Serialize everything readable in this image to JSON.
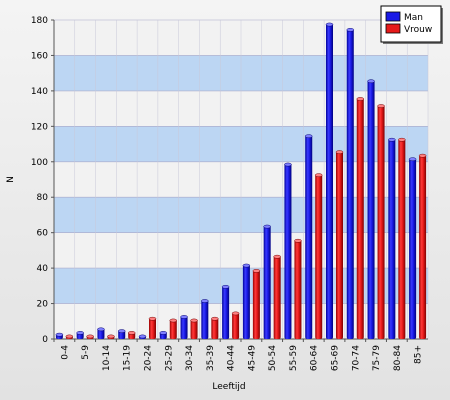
{
  "chart_data": {
    "type": "bar",
    "title": "",
    "xlabel": "Leeftijd",
    "ylabel": "N",
    "ylim": [
      0,
      180
    ],
    "yticks": [
      0,
      20,
      40,
      60,
      80,
      100,
      120,
      140,
      160,
      180
    ],
    "grid": "horizontal bands",
    "legend_position": "top-right",
    "categories": [
      "0-4",
      "5-9",
      "10-14",
      "15-19",
      "20-24",
      "25-29",
      "30-34",
      "35-39",
      "40-44",
      "45-49",
      "50-54",
      "55-59",
      "60-64",
      "65-69",
      "70-74",
      "75-79",
      "80-84",
      "85+"
    ],
    "series": [
      {
        "name": "Man",
        "color": "#1a1ae6",
        "values": [
          3,
          4,
          6,
          5,
          2,
          4,
          13,
          22,
          30,
          42,
          64,
          99,
          115,
          178,
          175,
          146,
          113,
          102
        ]
      },
      {
        "name": "Vrouw",
        "color": "#e61a1a",
        "values": [
          2,
          2,
          2,
          4,
          12,
          11,
          11,
          12,
          15,
          39,
          47,
          56,
          93,
          106,
          136,
          132,
          113,
          104
        ]
      }
    ]
  }
}
